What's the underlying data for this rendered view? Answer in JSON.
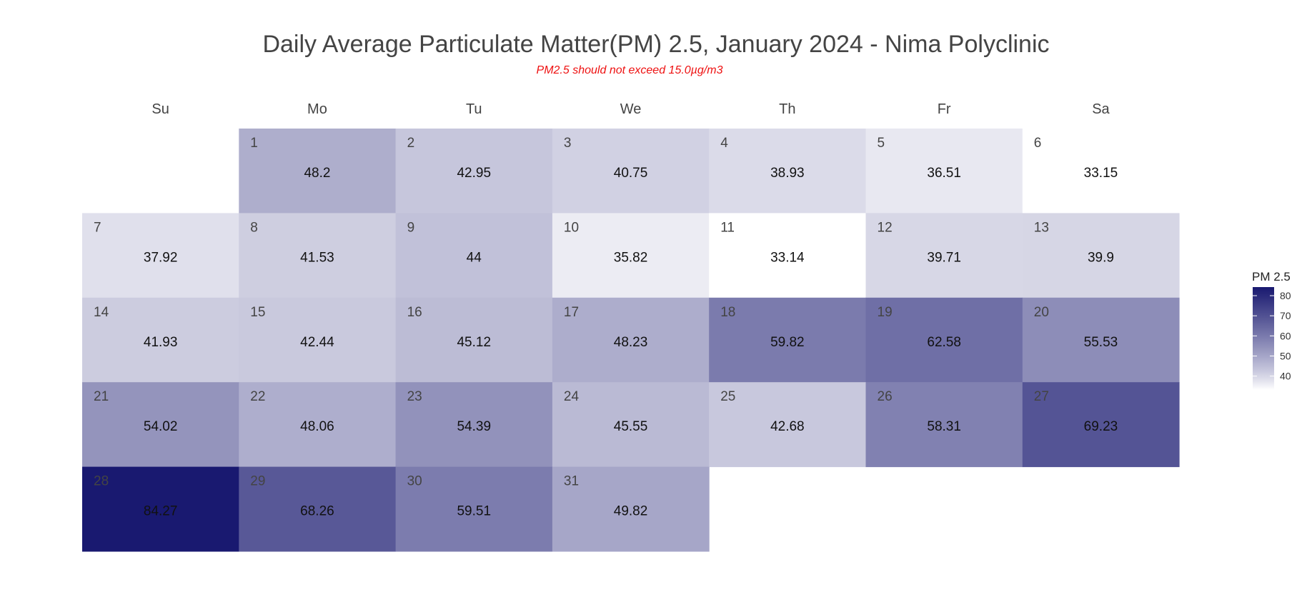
{
  "chart_data": {
    "type": "heatmap",
    "title": "Daily Average Particulate Matter(PM) 2.5, January 2024 - Nima Polyclinic",
    "subtitle": "PM2.5 should not exceed 15.0µg/m3",
    "weekdays": [
      "Su",
      "Mo",
      "Tu",
      "We",
      "Th",
      "Fr",
      "Sa"
    ],
    "first_weekday_index": 1,
    "days": [
      {
        "day": 1,
        "value": 48.2
      },
      {
        "day": 2,
        "value": 42.95
      },
      {
        "day": 3,
        "value": 40.75
      },
      {
        "day": 4,
        "value": 38.93
      },
      {
        "day": 5,
        "value": 36.51
      },
      {
        "day": 6,
        "value": 33.15
      },
      {
        "day": 7,
        "value": 37.92
      },
      {
        "day": 8,
        "value": 41.53
      },
      {
        "day": 9,
        "value": 44
      },
      {
        "day": 10,
        "value": 35.82
      },
      {
        "day": 11,
        "value": 33.14
      },
      {
        "day": 12,
        "value": 39.71
      },
      {
        "day": 13,
        "value": 39.9
      },
      {
        "day": 14,
        "value": 41.93
      },
      {
        "day": 15,
        "value": 42.44
      },
      {
        "day": 16,
        "value": 45.12
      },
      {
        "day": 17,
        "value": 48.23
      },
      {
        "day": 18,
        "value": 59.82
      },
      {
        "day": 19,
        "value": 62.58
      },
      {
        "day": 20,
        "value": 55.53
      },
      {
        "day": 21,
        "value": 54.02
      },
      {
        "day": 22,
        "value": 48.06
      },
      {
        "day": 23,
        "value": 54.39
      },
      {
        "day": 24,
        "value": 45.55
      },
      {
        "day": 25,
        "value": 42.68
      },
      {
        "day": 26,
        "value": 58.31
      },
      {
        "day": 27,
        "value": 69.23
      },
      {
        "day": 28,
        "value": 84.27
      },
      {
        "day": 29,
        "value": 68.26
      },
      {
        "day": 30,
        "value": 59.51
      },
      {
        "day": 31,
        "value": 49.82
      }
    ],
    "legend": {
      "title": "PM 2.5",
      "ticks": [
        40,
        50,
        60,
        70,
        80
      ]
    },
    "color_scale": {
      "low": "#ffffff",
      "high": "#191970",
      "domain": [
        33.14,
        84.27
      ]
    }
  }
}
